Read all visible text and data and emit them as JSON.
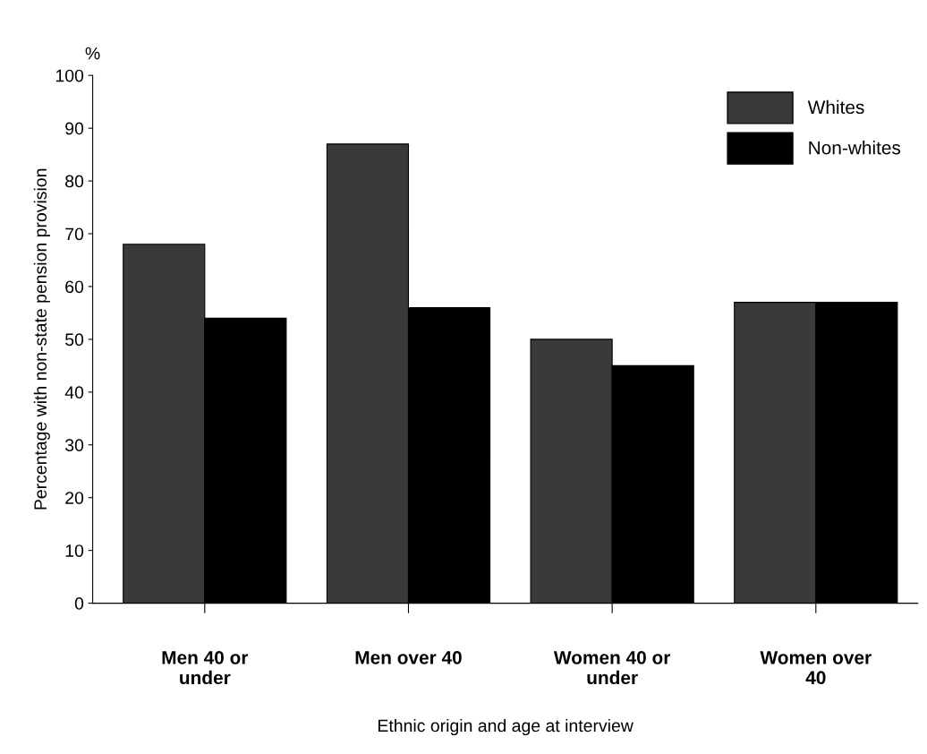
{
  "chart_data": {
    "type": "bar",
    "xlabel": "Ethnic origin and age at interview",
    "ylabel": "Percentage with non-state pension provision",
    "annotations": [
      "%"
    ],
    "categories": [
      "Men 40 or\nunder",
      "Men over 40",
      "Women 40 or\nunder",
      "Women over\n40"
    ],
    "series": [
      {
        "name": "Whites",
        "color": "#3a3a3a",
        "values": [
          68,
          87,
          50,
          57
        ]
      },
      {
        "name": "Non-whites",
        "color": "#000000",
        "values": [
          54,
          56,
          45,
          57
        ]
      }
    ],
    "ylim": [
      0,
      100
    ],
    "yticks": [
      0,
      10,
      20,
      30,
      40,
      50,
      60,
      70,
      80,
      90,
      100
    ],
    "grid": false,
    "legend": "top right"
  }
}
